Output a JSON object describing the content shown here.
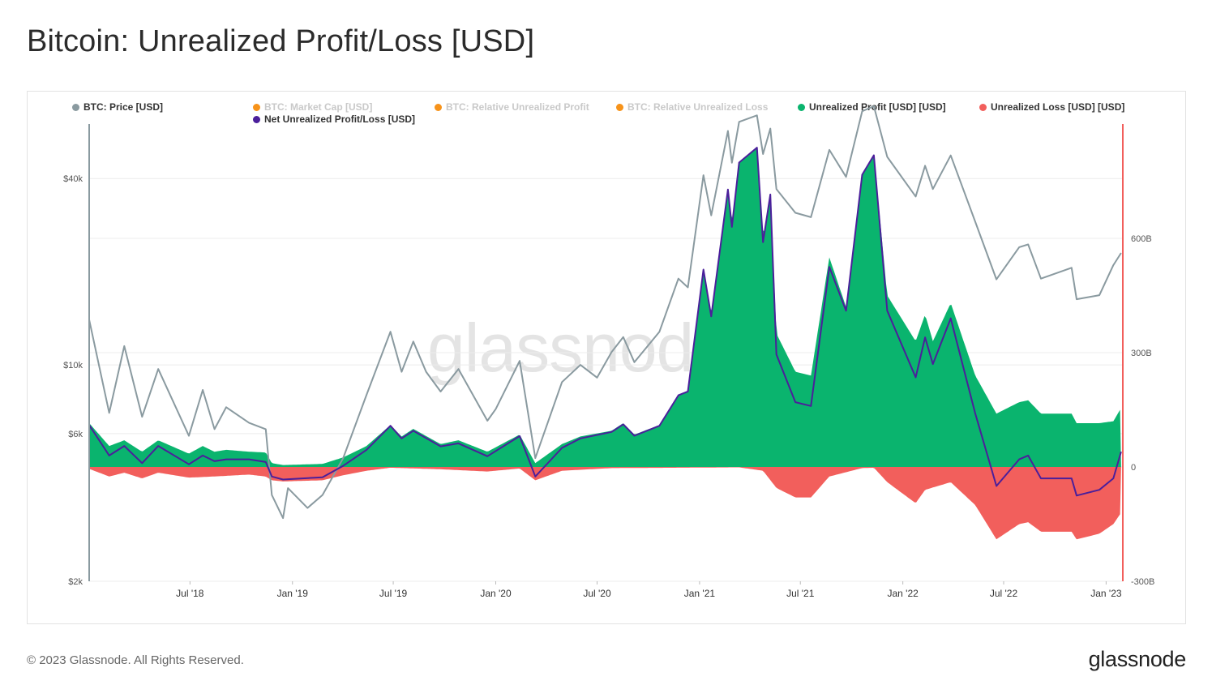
{
  "page": {
    "title": "Bitcoin: Unrealized Profit/Loss [USD]"
  },
  "legend": [
    {
      "label": "BTC: Price [USD]",
      "color": "#8a9aa0",
      "active": true
    },
    {
      "label": "BTC: Market Cap [USD]",
      "color": "#f7931a",
      "active": false
    },
    {
      "label": "BTC: Relative Unrealized Profit",
      "color": "#f7931a",
      "active": false
    },
    {
      "label": "BTC: Relative Unrealized Loss",
      "color": "#f7931a",
      "active": false
    },
    {
      "label": "Unrealized Profit [USD] [USD]",
      "color": "#0ab46e",
      "active": true
    },
    {
      "label": "Unrealized Loss [USD] [USD]",
      "color": "#f25f5c",
      "active": true
    },
    {
      "label": "Net Unrealized Profit/Loss [USD]",
      "color": "#4b1f9b",
      "active": true
    }
  ],
  "watermark": "glassnode",
  "footer": {
    "copyright": "© 2023 Glassnode. All Rights Reserved.",
    "brand": "glassnode"
  },
  "chart_data": {
    "type": "area",
    "x_ticks": [
      "Jul '18",
      "Jan '19",
      "Jul '19",
      "Jan '20",
      "Jul '20",
      "Jan '21",
      "Jul '21",
      "Jan '22",
      "Jul '22",
      "Jan '23"
    ],
    "x_range": [
      "2018-01-01",
      "2023-01-31"
    ],
    "left_axis": {
      "scale": "log",
      "range": [
        2000,
        60000
      ],
      "ticks": [
        {
          "v": 2000,
          "label": "$2k"
        },
        {
          "v": 6000,
          "label": "$6k"
        },
        {
          "v": 10000,
          "label": "$10k"
        },
        {
          "v": 40000,
          "label": "$40k"
        }
      ],
      "color": "#8a9aa0"
    },
    "right_axis": {
      "scale": "linear",
      "range": [
        -300,
        900
      ],
      "unit": "B USD",
      "ticks": [
        {
          "v": -300,
          "label": "-300B"
        },
        {
          "v": 0,
          "label": "0"
        },
        {
          "v": 300,
          "label": "300B"
        },
        {
          "v": 600,
          "label": "600B"
        }
      ],
      "color": "#f25f5c"
    },
    "series": [
      {
        "name": "BTC: Price [USD]",
        "axis": "left",
        "color": "#8a9aa0",
        "points": [
          [
            "2018-01-01",
            14000
          ],
          [
            "2018-02-06",
            7000
          ],
          [
            "2018-03-05",
            11500
          ],
          [
            "2018-04-06",
            6800
          ],
          [
            "2018-05-05",
            9700
          ],
          [
            "2018-06-29",
            5900
          ],
          [
            "2018-07-24",
            8300
          ],
          [
            "2018-08-14",
            6200
          ],
          [
            "2018-09-04",
            7300
          ],
          [
            "2018-10-15",
            6500
          ],
          [
            "2018-11-14",
            6200
          ],
          [
            "2018-11-25",
            3800
          ],
          [
            "2018-12-15",
            3200
          ],
          [
            "2018-12-24",
            4000
          ],
          [
            "2019-01-28",
            3450
          ],
          [
            "2019-02-24",
            3800
          ],
          [
            "2019-04-02",
            5000
          ],
          [
            "2019-05-14",
            8000
          ],
          [
            "2019-06-26",
            12800
          ],
          [
            "2019-07-16",
            9500
          ],
          [
            "2019-08-06",
            11900
          ],
          [
            "2019-08-29",
            9500
          ],
          [
            "2019-09-24",
            8200
          ],
          [
            "2019-10-26",
            9700
          ],
          [
            "2019-12-17",
            6600
          ],
          [
            "2020-01-01",
            7200
          ],
          [
            "2020-02-13",
            10300
          ],
          [
            "2020-03-12",
            5000
          ],
          [
            "2020-04-29",
            8800
          ],
          [
            "2020-06-01",
            10000
          ],
          [
            "2020-07-01",
            9100
          ],
          [
            "2020-07-27",
            11000
          ],
          [
            "2020-08-17",
            12300
          ],
          [
            "2020-09-06",
            10200
          ],
          [
            "2020-10-21",
            12800
          ],
          [
            "2020-11-24",
            19000
          ],
          [
            "2020-12-11",
            17800
          ],
          [
            "2021-01-08",
            41000
          ],
          [
            "2021-01-22",
            30400
          ],
          [
            "2021-02-21",
            57000
          ],
          [
            "2021-02-28",
            45000
          ],
          [
            "2021-03-13",
            61000
          ],
          [
            "2021-04-14",
            64000
          ],
          [
            "2021-04-25",
            48000
          ],
          [
            "2021-05-08",
            58000
          ],
          [
            "2021-05-19",
            37000
          ],
          [
            "2021-06-22",
            31000
          ],
          [
            "2021-07-20",
            30000
          ],
          [
            "2021-08-22",
            49500
          ],
          [
            "2021-09-21",
            40500
          ],
          [
            "2021-10-20",
            66000
          ],
          [
            "2021-11-10",
            68500
          ],
          [
            "2021-12-04",
            47000
          ],
          [
            "2022-01-24",
            35000
          ],
          [
            "2022-02-10",
            44000
          ],
          [
            "2022-02-24",
            37000
          ],
          [
            "2022-03-28",
            47500
          ],
          [
            "2022-05-11",
            29000
          ],
          [
            "2022-06-18",
            18900
          ],
          [
            "2022-07-29",
            24000
          ],
          [
            "2022-08-14",
            24500
          ],
          [
            "2022-09-06",
            19000
          ],
          [
            "2022-10-31",
            20600
          ],
          [
            "2022-11-09",
            16300
          ],
          [
            "2022-12-20",
            16800
          ],
          [
            "2023-01-14",
            21000
          ],
          [
            "2023-01-28",
            23000
          ]
        ]
      },
      {
        "name": "Unrealized Profit [USD] [USD]",
        "axis": "right",
        "color": "#0ab46e",
        "points": [
          [
            "2018-01-01",
            115
          ],
          [
            "2018-02-06",
            55
          ],
          [
            "2018-03-05",
            70
          ],
          [
            "2018-04-06",
            40
          ],
          [
            "2018-05-05",
            70
          ],
          [
            "2018-06-29",
            35
          ],
          [
            "2018-07-24",
            55
          ],
          [
            "2018-08-14",
            40
          ],
          [
            "2018-09-04",
            45
          ],
          [
            "2018-10-15",
            40
          ],
          [
            "2018-11-14",
            38
          ],
          [
            "2018-11-25",
            10
          ],
          [
            "2018-12-15",
            5
          ],
          [
            "2019-02-24",
            8
          ],
          [
            "2019-04-02",
            25
          ],
          [
            "2019-05-14",
            55
          ],
          [
            "2019-06-26",
            110
          ],
          [
            "2019-07-16",
            80
          ],
          [
            "2019-08-06",
            100
          ],
          [
            "2019-09-24",
            60
          ],
          [
            "2019-10-26",
            70
          ],
          [
            "2019-12-17",
            40
          ],
          [
            "2020-02-13",
            85
          ],
          [
            "2020-03-12",
            10
          ],
          [
            "2020-04-29",
            60
          ],
          [
            "2020-06-01",
            80
          ],
          [
            "2020-07-27",
            95
          ],
          [
            "2020-08-17",
            115
          ],
          [
            "2020-09-06",
            85
          ],
          [
            "2020-10-21",
            110
          ],
          [
            "2020-11-24",
            190
          ],
          [
            "2020-12-11",
            200
          ],
          [
            "2021-01-08",
            520
          ],
          [
            "2021-01-22",
            400
          ],
          [
            "2021-02-21",
            730
          ],
          [
            "2021-02-28",
            640
          ],
          [
            "2021-03-13",
            800
          ],
          [
            "2021-04-14",
            840
          ],
          [
            "2021-04-25",
            600
          ],
          [
            "2021-05-08",
            720
          ],
          [
            "2021-05-19",
            350
          ],
          [
            "2021-06-22",
            250
          ],
          [
            "2021-07-20",
            240
          ],
          [
            "2021-08-22",
            550
          ],
          [
            "2021-09-21",
            420
          ],
          [
            "2021-10-20",
            770
          ],
          [
            "2021-11-10",
            820
          ],
          [
            "2021-12-04",
            450
          ],
          [
            "2022-01-24",
            330
          ],
          [
            "2022-02-10",
            400
          ],
          [
            "2022-02-24",
            330
          ],
          [
            "2022-03-28",
            430
          ],
          [
            "2022-05-11",
            240
          ],
          [
            "2022-06-18",
            140
          ],
          [
            "2022-07-29",
            170
          ],
          [
            "2022-08-14",
            175
          ],
          [
            "2022-09-06",
            140
          ],
          [
            "2022-10-31",
            140
          ],
          [
            "2022-11-09",
            115
          ],
          [
            "2022-12-20",
            115
          ],
          [
            "2023-01-14",
            120
          ],
          [
            "2023-01-28",
            155
          ]
        ]
      },
      {
        "name": "Unrealized Loss [USD] [USD]",
        "axis": "right",
        "color": "#f25f5c",
        "points": [
          [
            "2018-01-01",
            -5
          ],
          [
            "2018-02-06",
            -25
          ],
          [
            "2018-03-05",
            -15
          ],
          [
            "2018-04-06",
            -30
          ],
          [
            "2018-05-05",
            -15
          ],
          [
            "2018-06-29",
            -28
          ],
          [
            "2018-08-14",
            -25
          ],
          [
            "2018-10-15",
            -20
          ],
          [
            "2018-11-14",
            -25
          ],
          [
            "2018-11-25",
            -35
          ],
          [
            "2018-12-15",
            -38
          ],
          [
            "2019-02-24",
            -35
          ],
          [
            "2019-04-02",
            -22
          ],
          [
            "2019-05-14",
            -10
          ],
          [
            "2019-06-26",
            -2
          ],
          [
            "2019-09-24",
            -6
          ],
          [
            "2019-12-17",
            -12
          ],
          [
            "2020-02-13",
            -4
          ],
          [
            "2020-03-12",
            -35
          ],
          [
            "2020-04-29",
            -10
          ],
          [
            "2020-07-27",
            -3
          ],
          [
            "2020-11-24",
            -2
          ],
          [
            "2021-03-13",
            -1
          ],
          [
            "2021-04-25",
            -10
          ],
          [
            "2021-05-19",
            -55
          ],
          [
            "2021-06-22",
            -80
          ],
          [
            "2021-07-20",
            -80
          ],
          [
            "2021-08-22",
            -25
          ],
          [
            "2021-10-20",
            -3
          ],
          [
            "2021-11-10",
            -2
          ],
          [
            "2021-12-04",
            -40
          ],
          [
            "2022-01-24",
            -95
          ],
          [
            "2022-02-10",
            -60
          ],
          [
            "2022-03-28",
            -40
          ],
          [
            "2022-05-11",
            -100
          ],
          [
            "2022-06-18",
            -190
          ],
          [
            "2022-07-29",
            -150
          ],
          [
            "2022-08-14",
            -145
          ],
          [
            "2022-09-06",
            -170
          ],
          [
            "2022-10-31",
            -170
          ],
          [
            "2022-11-09",
            -190
          ],
          [
            "2022-12-20",
            -175
          ],
          [
            "2023-01-14",
            -150
          ],
          [
            "2023-01-28",
            -120
          ]
        ]
      },
      {
        "name": "Net Unrealized Profit/Loss [USD]",
        "axis": "right",
        "color": "#4b1f9b",
        "points": [
          [
            "2018-01-01",
            110
          ],
          [
            "2018-02-06",
            30
          ],
          [
            "2018-03-05",
            55
          ],
          [
            "2018-04-06",
            10
          ],
          [
            "2018-05-05",
            55
          ],
          [
            "2018-06-29",
            7
          ],
          [
            "2018-07-24",
            30
          ],
          [
            "2018-08-14",
            15
          ],
          [
            "2018-09-04",
            20
          ],
          [
            "2018-10-15",
            20
          ],
          [
            "2018-11-14",
            13
          ],
          [
            "2018-11-25",
            -25
          ],
          [
            "2018-12-15",
            -33
          ],
          [
            "2019-02-24",
            -27
          ],
          [
            "2019-04-02",
            3
          ],
          [
            "2019-05-14",
            45
          ],
          [
            "2019-06-26",
            108
          ],
          [
            "2019-07-16",
            75
          ],
          [
            "2019-08-06",
            95
          ],
          [
            "2019-09-24",
            54
          ],
          [
            "2019-10-26",
            62
          ],
          [
            "2019-12-17",
            28
          ],
          [
            "2020-02-13",
            81
          ],
          [
            "2020-03-12",
            -25
          ],
          [
            "2020-04-29",
            50
          ],
          [
            "2020-06-01",
            75
          ],
          [
            "2020-07-27",
            92
          ],
          [
            "2020-08-17",
            112
          ],
          [
            "2020-09-06",
            82
          ],
          [
            "2020-10-21",
            108
          ],
          [
            "2020-11-24",
            188
          ],
          [
            "2020-12-11",
            198
          ],
          [
            "2021-01-08",
            518
          ],
          [
            "2021-01-22",
            395
          ],
          [
            "2021-02-21",
            728
          ],
          [
            "2021-02-28",
            630
          ],
          [
            "2021-03-13",
            799
          ],
          [
            "2021-04-14",
            838
          ],
          [
            "2021-04-25",
            590
          ],
          [
            "2021-05-08",
            715
          ],
          [
            "2021-05-19",
            295
          ],
          [
            "2021-06-22",
            170
          ],
          [
            "2021-07-20",
            160
          ],
          [
            "2021-08-22",
            525
          ],
          [
            "2021-09-21",
            410
          ],
          [
            "2021-10-20",
            767
          ],
          [
            "2021-11-10",
            818
          ],
          [
            "2021-12-04",
            410
          ],
          [
            "2022-01-24",
            235
          ],
          [
            "2022-02-10",
            340
          ],
          [
            "2022-02-24",
            270
          ],
          [
            "2022-03-28",
            390
          ],
          [
            "2022-05-11",
            140
          ],
          [
            "2022-06-18",
            -50
          ],
          [
            "2022-07-29",
            20
          ],
          [
            "2022-08-14",
            30
          ],
          [
            "2022-09-06",
            -30
          ],
          [
            "2022-10-31",
            -30
          ],
          [
            "2022-11-09",
            -75
          ],
          [
            "2022-12-20",
            -60
          ],
          [
            "2023-01-14",
            -30
          ],
          [
            "2023-01-28",
            40
          ]
        ]
      }
    ]
  }
}
